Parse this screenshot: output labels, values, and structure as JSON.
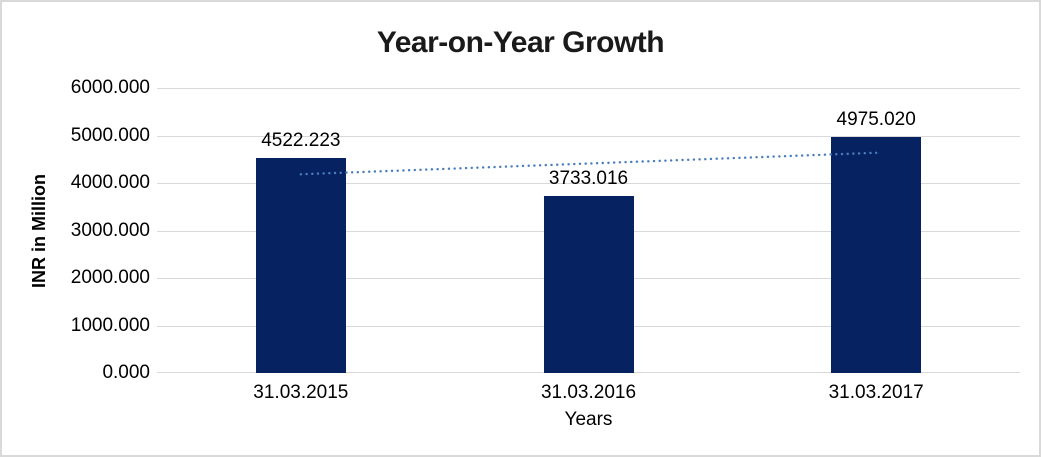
{
  "window": {
    "background_color": "#FFFFFF",
    "frame_border_color": "#D9D9D9"
  },
  "chart_data": {
    "type": "bar",
    "title": "Year-on-Year Growth",
    "categories": [
      "31.03.2015",
      "31.03.2016",
      "31.03.2017"
    ],
    "values": [
      4522.223,
      3733.016,
      4975.02
    ],
    "data_labels": [
      "4522.223",
      "3733.016",
      "4975.020"
    ],
    "xlabel": "Years",
    "ylabel": "INR in Million",
    "ylim": [
      0,
      6000
    ],
    "ytick_step": 1000,
    "ytick_labels": [
      "6000.000",
      "5000.000",
      "4000.000",
      "3000.000",
      "2000.000",
      "1000.000",
      "0.000"
    ],
    "grid": "horizontal gridlines on",
    "legend_position": "none",
    "bar_color": "#062261",
    "gridline_color": "#D9D9D9",
    "trendline": {
      "type": "linear",
      "style": "dotted",
      "color": "#4A7EBB",
      "spans_categories": [
        "31.03.2015",
        "31.03.2017"
      ]
    }
  }
}
